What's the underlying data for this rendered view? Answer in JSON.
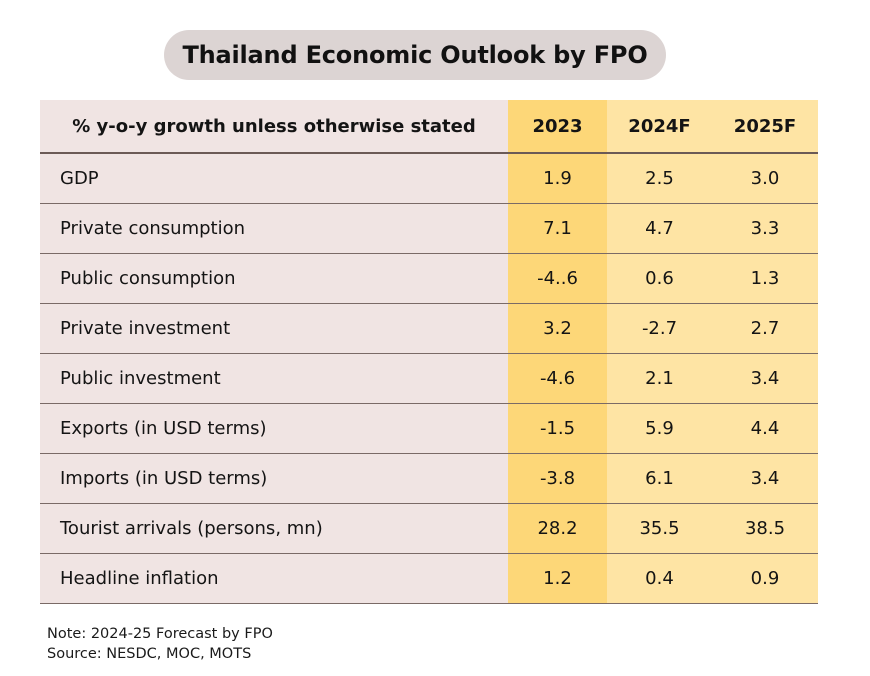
{
  "title": "Thailand Economic Outlook by FPO",
  "table": {
    "header": {
      "label": "% y-o-y  growth unless otherwise stated",
      "years": [
        "2023",
        "2024F",
        "2025F"
      ]
    },
    "rows": [
      {
        "label": "GDP",
        "values": [
          "1.9",
          "2.5",
          "3.0"
        ]
      },
      {
        "label": "Private consumption",
        "values": [
          "7.1",
          "4.7",
          "3.3"
        ]
      },
      {
        "label": "Public consumption",
        "values": [
          "-4..6",
          "0.6",
          "1.3"
        ]
      },
      {
        "label": "Private investment",
        "values": [
          "3.2",
          "-2.7",
          "2.7"
        ]
      },
      {
        "label": "Public investment",
        "values": [
          "-4.6",
          "2.1",
          "3.4"
        ]
      },
      {
        "label": "Exports (in USD terms)",
        "values": [
          "-1.5",
          "5.9",
          "4.4"
        ]
      },
      {
        "label": "Imports (in USD terms)",
        "values": [
          "-3.8",
          "6.1",
          "3.4"
        ]
      },
      {
        "label": "Tourist arrivals (persons, mn)",
        "values": [
          "28.2",
          "35.5",
          "38.5"
        ]
      },
      {
        "label": "Headline inflation",
        "values": [
          "1.2",
          "0.4",
          "0.9"
        ]
      }
    ]
  },
  "notes": {
    "note": "Note: 2024-25 Forecast by FPO",
    "source": "Source: NESDC, MOC, MOTS"
  }
}
